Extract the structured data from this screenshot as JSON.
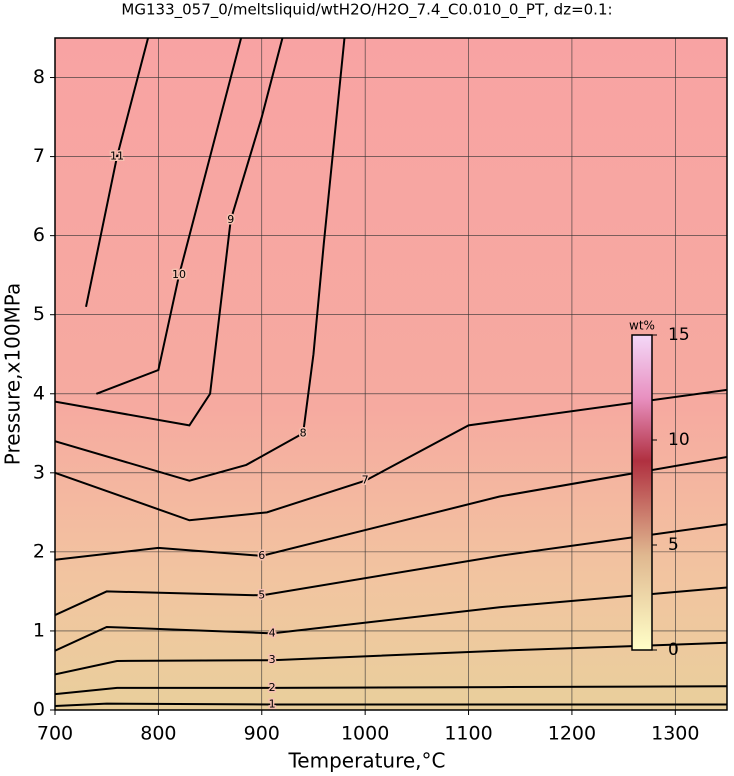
{
  "chart_data": {
    "type": "contour",
    "title": "MG133_057_0/meltsliquid/wtH2O/H2O_7.4_C0.010_0_PT, dz=0.1:",
    "x_label": "Temperature,°C",
    "y_label": "Pressure,x100MPa",
    "xlim": [
      700,
      1350
    ],
    "ylim": [
      0,
      8.5
    ],
    "xticks": [
      700,
      800,
      900,
      1000,
      1100,
      1200,
      1300
    ],
    "yticks": [
      0,
      1,
      2,
      3,
      4,
      5,
      6,
      7,
      8
    ],
    "grid": true,
    "colorbar": {
      "label": "wt%",
      "clim": [
        0,
        15
      ],
      "ticks": [
        0,
        5,
        10,
        15
      ]
    },
    "contours": [
      {
        "level": 1,
        "x": [
          700,
          750,
          910,
          1130,
          1350
        ],
        "y": [
          0.05,
          0.08,
          0.07,
          0.07,
          0.07
        ]
      },
      {
        "level": 2,
        "x": [
          700,
          760,
          910,
          1130,
          1350
        ],
        "y": [
          0.2,
          0.28,
          0.28,
          0.29,
          0.3
        ]
      },
      {
        "level": 3,
        "x": [
          700,
          760,
          910,
          1130,
          1350
        ],
        "y": [
          0.45,
          0.62,
          0.63,
          0.75,
          0.85
        ]
      },
      {
        "level": 4,
        "x": [
          700,
          750,
          910,
          1130,
          1350
        ],
        "y": [
          0.75,
          1.05,
          0.97,
          1.3,
          1.55
        ]
      },
      {
        "level": 5,
        "x": [
          700,
          750,
          900,
          1130,
          1350
        ],
        "y": [
          1.2,
          1.5,
          1.45,
          1.95,
          2.35
        ]
      },
      {
        "level": 6,
        "x": [
          700,
          800,
          900,
          1130,
          1350
        ],
        "y": [
          1.9,
          2.05,
          1.95,
          2.7,
          3.2
        ]
      },
      {
        "level": 7,
        "x": [
          700,
          830,
          905,
          1000,
          1100,
          1350
        ],
        "y": [
          3.0,
          2.4,
          2.5,
          2.9,
          3.6,
          4.05
        ]
      },
      {
        "level": 8,
        "x": [
          700,
          830,
          885,
          940,
          950,
          960,
          980
        ],
        "y": [
          3.4,
          2.9,
          3.1,
          3.5,
          4.5,
          5.9,
          8.5
        ]
      },
      {
        "level": 9,
        "x": [
          700,
          830,
          850,
          870,
          900,
          920
        ],
        "y": [
          3.9,
          3.6,
          4.0,
          6.2,
          7.5,
          8.5
        ]
      },
      {
        "level": 10,
        "x": [
          740,
          800,
          820,
          850,
          880
        ],
        "y": [
          4.0,
          4.3,
          5.5,
          7.0,
          8.5
        ]
      },
      {
        "level": 11,
        "x": [
          730,
          760,
          790
        ],
        "y": [
          5.1,
          7.0,
          8.5
        ]
      }
    ]
  }
}
